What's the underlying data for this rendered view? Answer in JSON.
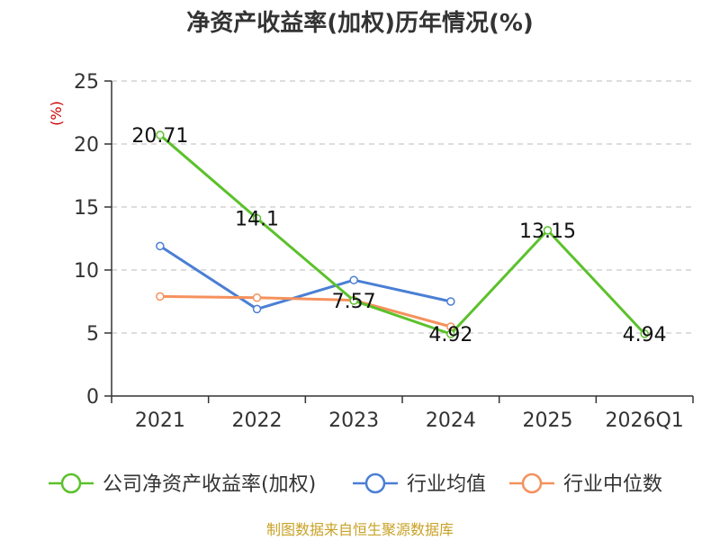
{
  "chart_data": {
    "type": "line",
    "title": "净资产收益率(加权)历年情况(%)",
    "ylabel": "(%)",
    "xlabel": "",
    "ylim": [
      0,
      25
    ],
    "yticks": [
      0,
      5,
      10,
      15,
      20,
      25
    ],
    "grid": "horizontal dashed",
    "legend": "bottom",
    "categories": [
      "2021",
      "2022",
      "2023",
      "2024",
      "2025",
      "2026Q1"
    ],
    "series": [
      {
        "name": "公司净资产收益率(加权)",
        "color": "#5bc12b",
        "values": [
          20.71,
          14.1,
          7.57,
          4.92,
          13.15,
          4.94
        ],
        "labels": [
          "20.71",
          "14.1",
          "7.57",
          "4.92",
          "13.15",
          "4.94"
        ]
      },
      {
        "name": "行业均值",
        "color": "#4a7fd4",
        "values": [
          11.9,
          6.9,
          9.2,
          7.5,
          null,
          null
        ]
      },
      {
        "name": "行业中位数",
        "color": "#f5915c",
        "values": [
          7.9,
          7.8,
          7.6,
          5.5,
          null,
          null
        ]
      }
    ],
    "source": "制图数据来自恒生聚源数据库",
    "colors": {
      "axis": "#333333",
      "grid": "#bbbbbb",
      "unit": "#cc0000",
      "source": "#c9a227"
    }
  }
}
